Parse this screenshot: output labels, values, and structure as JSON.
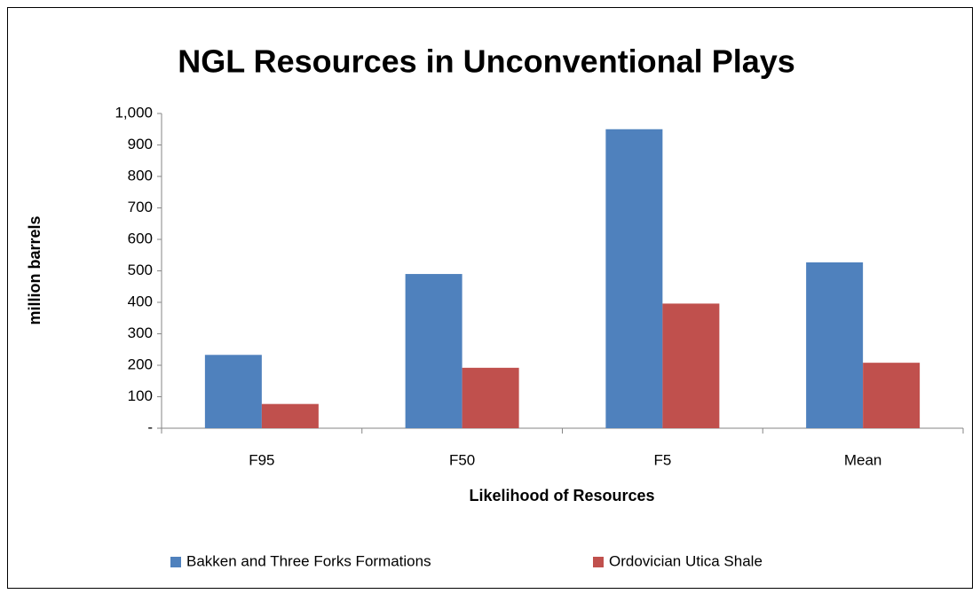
{
  "chart_data": {
    "type": "bar",
    "title": "NGL Resources in Unconventional Plays",
    "x_label": "Likelihood of Resources",
    "y_label": "million barrels",
    "categories": [
      "F95",
      "F50",
      "F5",
      "Mean"
    ],
    "series": [
      {
        "name": "Bakken and Three Forks Formations",
        "color": "#4f81bd",
        "values": [
          233,
          490,
          950,
          527
        ]
      },
      {
        "name": "Ordovician Utica Shale",
        "color": "#c0504d",
        "values": [
          77,
          192,
          396,
          208
        ]
      }
    ],
    "ylim": [
      0,
      1000
    ],
    "yticks": [
      {
        "value": 0,
        "label": "-"
      },
      100,
      200,
      300,
      400,
      500,
      600,
      700,
      800,
      900,
      {
        "value": 1000,
        "label": "1,000"
      }
    ],
    "grid": false,
    "legend": "bottom"
  }
}
